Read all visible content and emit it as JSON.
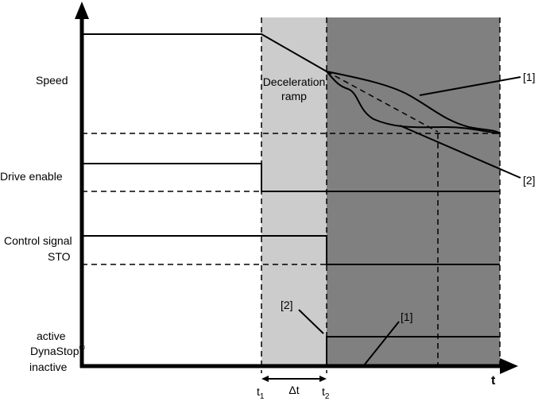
{
  "labels": {
    "speed": "Speed",
    "drive_enable": "Drive enable",
    "control_signal": "Control signal",
    "sto": "STO",
    "active": "active",
    "dynastop": "DynaStop",
    "registered": "®",
    "inactive": "inactive",
    "decel_line1": "Deceleration",
    "decel_line2": "ramp",
    "ref1_speed": "[1]",
    "ref2_speed": "[2]",
    "ref2_dynastop": "[2]",
    "ref1_dynastop": "[1]",
    "t1": "t",
    "t1_sub": "1",
    "t2": "t",
    "t2_sub": "2",
    "delta_t": "Δt",
    "t_axis": "t"
  },
  "colors": {
    "ramp_zone": "#cccccc",
    "stop_zone": "#808080",
    "line": "#000000"
  }
}
